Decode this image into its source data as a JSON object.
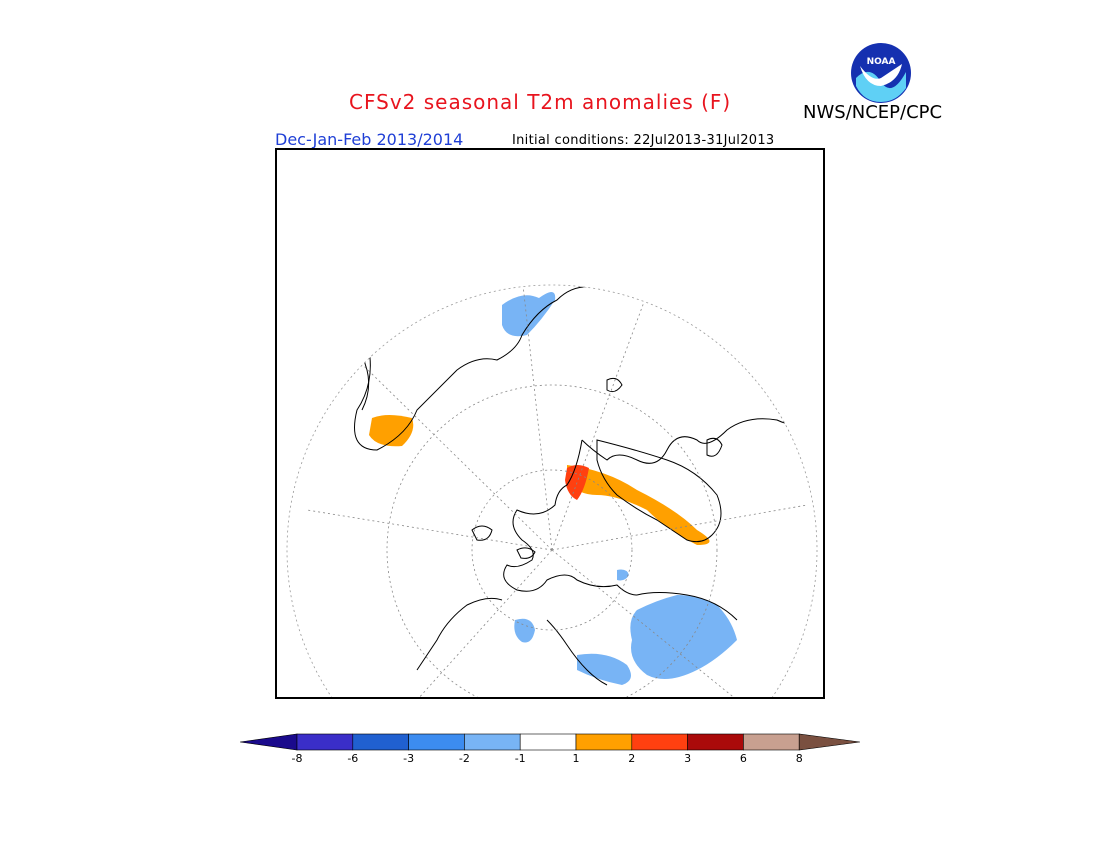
{
  "header": {
    "title": "CFSv2 seasonal T2m anomalies (F)",
    "agency": "NWS/NCEP/CPC",
    "season": "Dec-Jan-Feb 2013/2014",
    "initial_conditions": "Initial conditions: 22Jul2013-31Jul2013",
    "logo_text": "NOAA"
  },
  "legend": {
    "left_arrow_color": "#1a0a8c",
    "right_arrow_color": "#7a5040",
    "bins": [
      {
        "color": "#3a2ec8"
      },
      {
        "color": "#2060d0"
      },
      {
        "color": "#3c8cf0"
      },
      {
        "color": "#78b4f5"
      },
      {
        "color": "#ffffff"
      },
      {
        "color": "#ffa000"
      },
      {
        "color": "#ff4010"
      },
      {
        "color": "#aa0a0a"
      },
      {
        "color": "#c8a090"
      }
    ],
    "tick_labels": [
      "-8",
      "-6",
      "-3",
      "-2",
      "-1",
      "1",
      "2",
      "3",
      "6",
      "8"
    ]
  },
  "map": {
    "projection": "north-polar-stereographic",
    "colors": {
      "warm_1": "#ffa000",
      "warm_2": "#ff4010",
      "warm_3": "#aa0a0a",
      "warm_4": "#c8a090",
      "cool_1": "#78b4f5",
      "coast": "#000000",
      "grid": "#888888"
    }
  }
}
